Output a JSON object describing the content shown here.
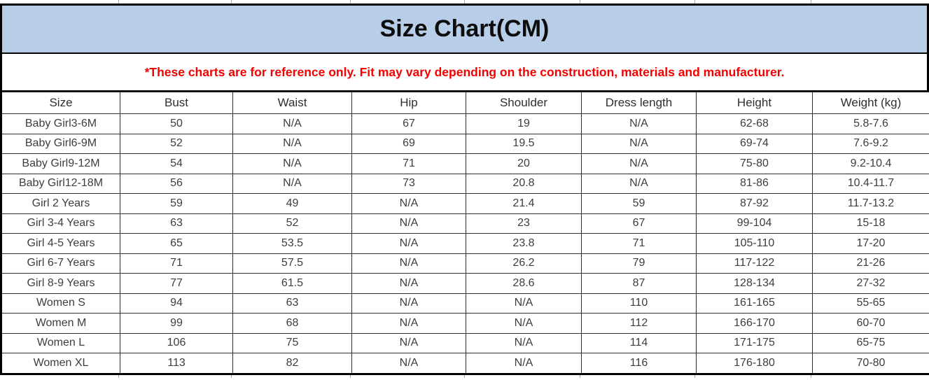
{
  "title": "Size Chart(CM)",
  "disclaimer": "*These charts are for reference only. Fit may vary depending on the construction, materials and manufacturer.",
  "colors": {
    "title_band_bg": "#b8cde7",
    "title_text": "#0d0d0d",
    "disclaimer_text": "#f40000",
    "grid_line": "#2e2e2e",
    "outer_border": "#000000",
    "cell_text": "#3d3d3d"
  },
  "table": {
    "columns": [
      "Size",
      "Bust",
      "Waist",
      "Hip",
      "Shoulder",
      "Dress length",
      "Height",
      "Weight (kg)"
    ],
    "rows": [
      [
        "Baby Girl3-6M",
        "50",
        "N/A",
        "67",
        "19",
        "N/A",
        "62-68",
        "5.8-7.6"
      ],
      [
        "Baby Girl6-9M",
        "52",
        "N/A",
        "69",
        "19.5",
        "N/A",
        "69-74",
        "7.6-9.2"
      ],
      [
        "Baby Girl9-12M",
        "54",
        "N/A",
        "71",
        "20",
        "N/A",
        "75-80",
        "9.2-10.4"
      ],
      [
        "Baby Girl12-18M",
        "56",
        "N/A",
        "73",
        "20.8",
        "N/A",
        "81-86",
        "10.4-11.7"
      ],
      [
        "Girl 2 Years",
        "59",
        "49",
        "N/A",
        "21.4",
        "59",
        "87-92",
        "11.7-13.2"
      ],
      [
        "Girl 3-4 Years",
        "63",
        "52",
        "N/A",
        "23",
        "67",
        "99-104",
        "15-18"
      ],
      [
        "Girl 4-5 Years",
        "65",
        "53.5",
        "N/A",
        "23.8",
        "71",
        "105-110",
        "17-20"
      ],
      [
        "Girl 6-7 Years",
        "71",
        "57.5",
        "N/A",
        "26.2",
        "79",
        "117-122",
        "21-26"
      ],
      [
        "Girl 8-9 Years",
        "77",
        "61.5",
        "N/A",
        "28.6",
        "87",
        "128-134",
        "27-32"
      ],
      [
        "Women S",
        "94",
        "63",
        "N/A",
        "N/A",
        "110",
        "161-165",
        "55-65"
      ],
      [
        "Women M",
        "99",
        "68",
        "N/A",
        "N/A",
        "112",
        "166-170",
        "60-70"
      ],
      [
        "Women L",
        "106",
        "75",
        "N/A",
        "N/A",
        "114",
        "171-175",
        "65-75"
      ],
      [
        "Women XL",
        "113",
        "82",
        "N/A",
        "N/A",
        "116",
        "176-180",
        "70-80"
      ]
    ]
  }
}
